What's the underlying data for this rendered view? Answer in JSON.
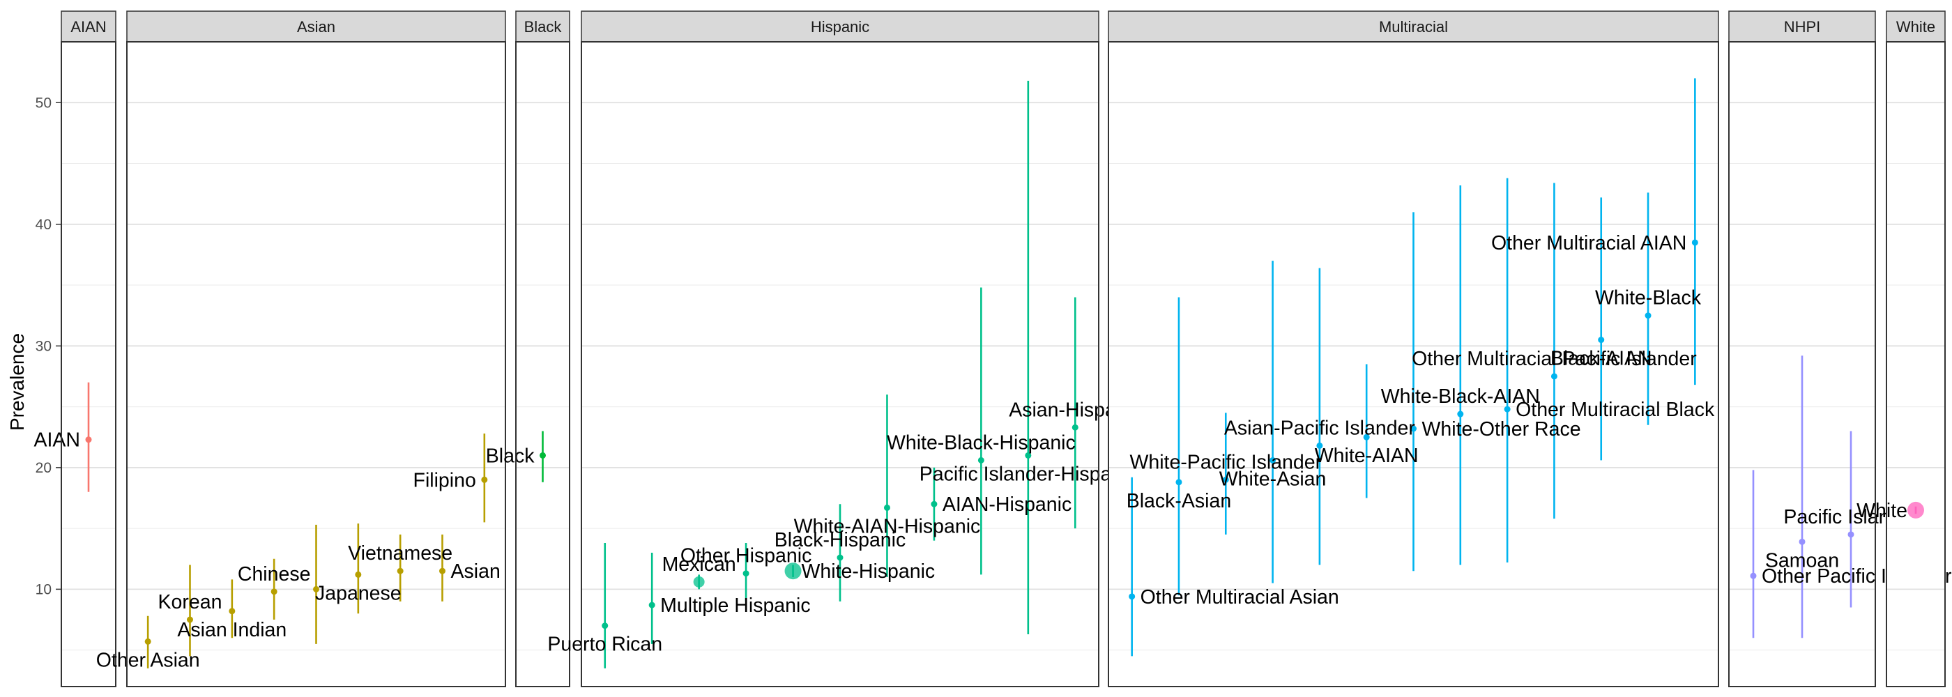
{
  "chart_data": {
    "type": "scatter",
    "title": "",
    "xlabel": "",
    "ylabel": "Prevalence",
    "ylim": [
      2,
      55
    ],
    "yticks": [
      10,
      20,
      30,
      40,
      50
    ],
    "grid": true,
    "legend": "none",
    "facets": [
      {
        "name": "AIAN",
        "color": "#F8766D",
        "points": [
          {
            "label": "AIAN",
            "value": 22.3,
            "lower": 18.0,
            "upper": 27.0,
            "label_pos": "left"
          }
        ]
      },
      {
        "name": "Asian",
        "color": "#B79F00",
        "points": [
          {
            "label": "Other Asian",
            "value": 5.7,
            "lower": 3.5,
            "upper": 7.8,
            "label_pos": "below"
          },
          {
            "label": "Korean",
            "value": 7.5,
            "lower": 4.5,
            "upper": 12.0,
            "label_pos": "above"
          },
          {
            "label": "Asian Indian",
            "value": 8.2,
            "lower": 6.0,
            "upper": 10.8,
            "label_pos": "below"
          },
          {
            "label": "Chinese",
            "value": 9.8,
            "lower": 7.5,
            "upper": 12.5,
            "label_pos": "above"
          },
          {
            "label": "",
            "value": 10.0,
            "lower": 5.5,
            "upper": 15.3
          },
          {
            "label": "Japanese",
            "value": 11.2,
            "lower": 8.0,
            "upper": 15.4,
            "label_pos": "below"
          },
          {
            "label": "Vietnamese",
            "value": 11.5,
            "lower": 9.0,
            "upper": 14.5,
            "label_pos": "above"
          },
          {
            "label": "Asian",
            "value": 11.5,
            "lower": 9.0,
            "upper": 14.5,
            "label_pos": "right"
          },
          {
            "label": "Filipino",
            "value": 19.0,
            "lower": 15.5,
            "upper": 22.8,
            "label_pos": "left"
          }
        ]
      },
      {
        "name": "Black",
        "color": "#00BA38",
        "points": [
          {
            "label": "Black",
            "value": 21.0,
            "lower": 18.8,
            "upper": 23.0,
            "label_pos": "left"
          }
        ]
      },
      {
        "name": "Hispanic",
        "color": "#00C08B",
        "points": [
          {
            "label": "Puerto Rican",
            "value": 7.0,
            "lower": 3.5,
            "upper": 13.8,
            "label_pos": "below"
          },
          {
            "label": "Multiple Hispanic",
            "value": 8.7,
            "lower": 5.5,
            "upper": 13.0,
            "label_pos": "right"
          },
          {
            "label": "Mexican",
            "value": 10.6,
            "lower": 10.0,
            "upper": 11.2,
            "label_pos": "above",
            "size": "large"
          },
          {
            "label": "Other Hispanic",
            "value": 11.3,
            "lower": 9.0,
            "upper": 13.8,
            "label_pos": "above"
          },
          {
            "label": "White-Hispanic",
            "value": 11.5,
            "lower": 11.0,
            "upper": 12.0,
            "label_pos": "right",
            "size": "xlarge"
          },
          {
            "label": "Black-Hispanic",
            "value": 12.6,
            "lower": 9.0,
            "upper": 17.0,
            "label_pos": "above"
          },
          {
            "label": "White-AIAN-Hispanic",
            "value": 16.7,
            "lower": 11.0,
            "upper": 26.0,
            "label_pos": "below"
          },
          {
            "label": "AIAN-Hispanic",
            "value": 17.0,
            "lower": 14.0,
            "upper": 20.0,
            "label_pos": "right"
          },
          {
            "label": "White-Black-Hispanic",
            "value": 20.6,
            "lower": 11.2,
            "upper": 34.8,
            "label_pos": "above"
          },
          {
            "label": "Pacific Islander-Hispanic",
            "value": 21.0,
            "lower": 6.3,
            "upper": 51.8,
            "label_pos": "below"
          },
          {
            "label": "Asian-Hispanic",
            "value": 23.3,
            "lower": 15.0,
            "upper": 34.0,
            "label_pos": "above"
          }
        ]
      },
      {
        "name": "Multiracial",
        "color": "#00B4EF",
        "points": [
          {
            "label": "Other Multiracial Asian",
            "value": 9.4,
            "lower": 4.5,
            "upper": 19.2,
            "label_pos": "right"
          },
          {
            "label": "Black-Asian",
            "value": 18.8,
            "lower": 9.5,
            "upper": 34.0,
            "label_pos": "below"
          },
          {
            "label": "White-Pacific Islander",
            "value": 19.0,
            "lower": 14.5,
            "upper": 24.5,
            "label_pos": "above"
          },
          {
            "label": "White-Asian",
            "value": 20.6,
            "lower": 10.5,
            "upper": 37.0,
            "label_pos": "below"
          },
          {
            "label": "Asian-Pacific Islander",
            "value": 21.8,
            "lower": 12.0,
            "upper": 36.4,
            "label_pos": "above"
          },
          {
            "label": "White-AIAN",
            "value": 22.5,
            "lower": 17.5,
            "upper": 28.5,
            "label_pos": "below"
          },
          {
            "label": "White-Other Race",
            "value": 23.2,
            "lower": 11.5,
            "upper": 41.0,
            "label_pos": "right"
          },
          {
            "label": "White-Black-AIAN",
            "value": 24.4,
            "lower": 12.0,
            "upper": 43.2,
            "label_pos": "above"
          },
          {
            "label": "Other Multiracial Black",
            "value": 24.8,
            "lower": 12.2,
            "upper": 43.8,
            "label_pos": "right"
          },
          {
            "label": "Other Multiracial Pacific Islander",
            "value": 27.5,
            "lower": 15.8,
            "upper": 43.4,
            "label_pos": "above"
          },
          {
            "label": "Black-AIAN",
            "value": 30.5,
            "lower": 20.6,
            "upper": 42.2,
            "label_pos": "below"
          },
          {
            "label": "White-Black",
            "value": 32.5,
            "lower": 23.5,
            "upper": 42.6,
            "label_pos": "above"
          },
          {
            "label": "Other Multiracial AIAN",
            "value": 38.5,
            "lower": 26.8,
            "upper": 52.0,
            "label_pos": "left"
          }
        ]
      },
      {
        "name": "NHPI",
        "color": "#9590FF",
        "points": [
          {
            "label": "Other Pacific Islander",
            "value": 11.1,
            "lower": 6.0,
            "upper": 19.8,
            "label_pos": "right"
          },
          {
            "label": "Samoan",
            "value": 13.9,
            "lower": 6.0,
            "upper": 29.2,
            "label_pos": "below"
          },
          {
            "label": "Pacific Islander",
            "value": 14.5,
            "lower": 8.5,
            "upper": 23.0,
            "label_pos": "above"
          }
        ]
      },
      {
        "name": "White",
        "color": "#FF62BC",
        "points": [
          {
            "label": "White",
            "value": 16.5,
            "lower": 16.2,
            "upper": 16.8,
            "label_pos": "left",
            "size": "xlarge"
          }
        ]
      }
    ]
  }
}
